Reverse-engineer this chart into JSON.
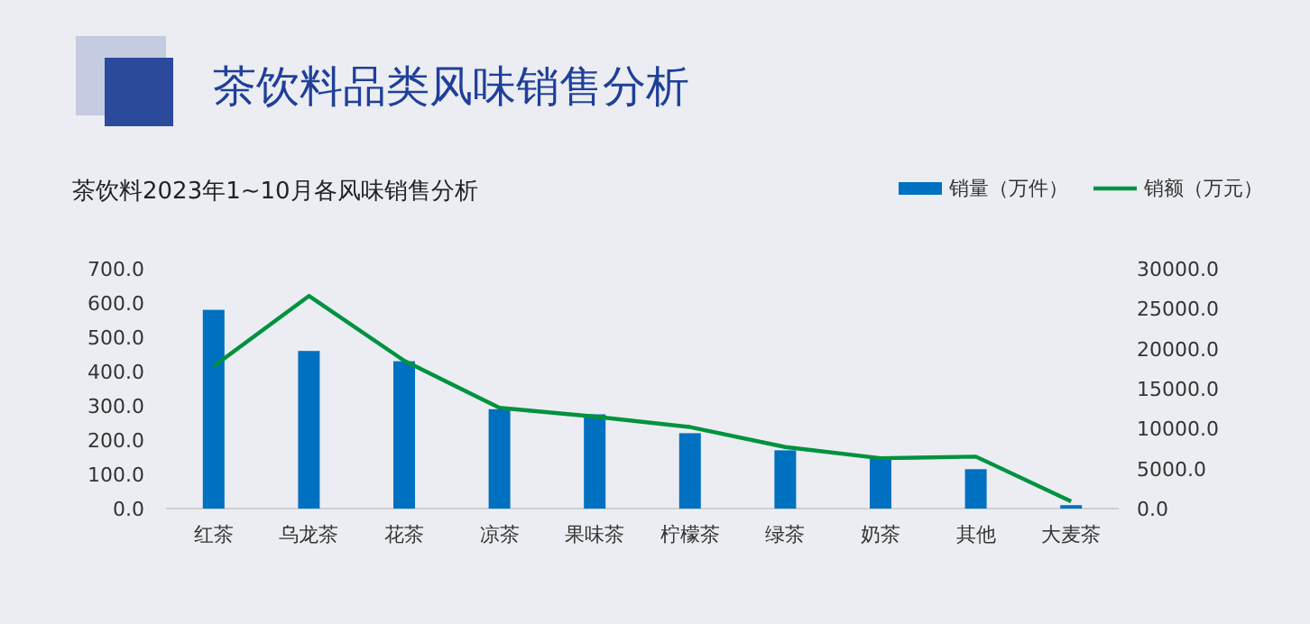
{
  "chart_data": {
    "type": "bar",
    "title": "茶饮料品类风味销售分析",
    "subtitle": "茶饮料2023年1~10月各风味销售分析",
    "categories": [
      "红茶",
      "乌龙茶",
      "花茶",
      "凉茶",
      "果味茶",
      "柠檬茶",
      "绿茶",
      "奶茶",
      "其他",
      "大麦茶"
    ],
    "series": [
      {
        "name": "销量（万件）",
        "color": "#0070c0",
        "values": [
          580,
          460,
          430,
          290,
          275,
          220,
          170,
          150,
          115,
          10
        ]
      },
      {
        "name": "销额（万元）",
        "type": "line",
        "axis": "y2",
        "color": "#00923f",
        "values": [
          17800,
          26600,
          18500,
          12600,
          11500,
          10200,
          7700,
          6300,
          6500,
          900
        ]
      }
    ],
    "ylim": [
      0,
      700
    ],
    "yticks": [
      {
        "value": 0,
        "label": "0.0"
      },
      {
        "value": 100,
        "label": "100.0"
      },
      {
        "value": 200,
        "label": "200.0"
      },
      {
        "value": 300,
        "label": "300.0"
      },
      {
        "value": 400,
        "label": "400.0"
      },
      {
        "value": 500,
        "label": "500.0"
      },
      {
        "value": 600,
        "label": "600.0"
      },
      {
        "value": 700,
        "label": "700.0"
      }
    ],
    "y2lim": [
      0,
      30000
    ],
    "y2ticks": [
      {
        "value": 0,
        "label": "0.0"
      },
      {
        "value": 5000,
        "label": "5000.0"
      },
      {
        "value": 10000,
        "label": "10000.0"
      },
      {
        "value": 15000,
        "label": "15000.0"
      },
      {
        "value": 20000,
        "label": "20000.0"
      },
      {
        "value": 25000,
        "label": "25000.0"
      },
      {
        "value": 30000,
        "label": "30000.0"
      }
    ],
    "legend": "top right",
    "grid": false
  }
}
